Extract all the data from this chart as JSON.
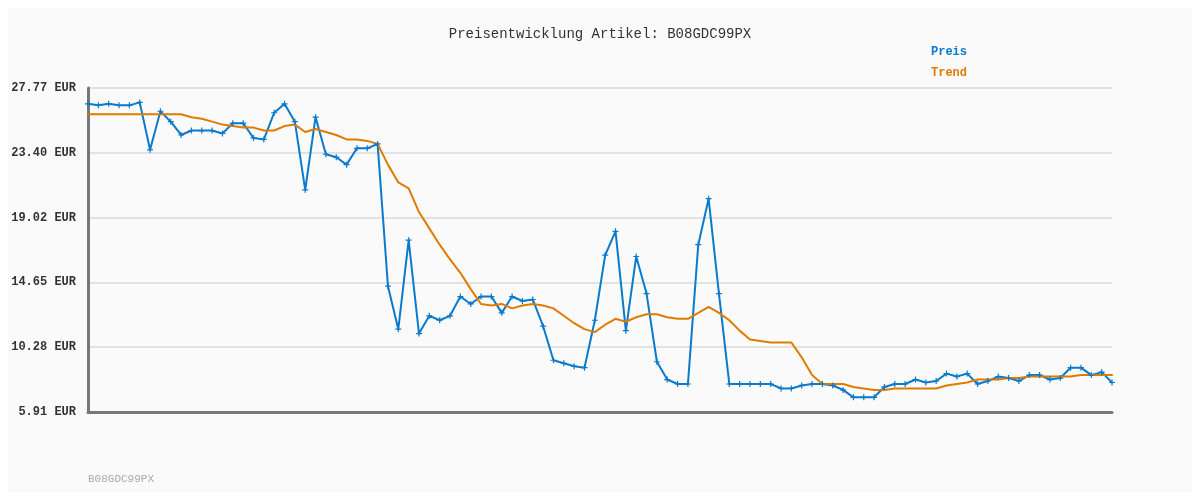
{
  "chart_data": {
    "type": "line",
    "title": "Preisentwicklung Artikel: B08GDC99PX",
    "categories": [
      null,
      null,
      null,
      null,
      null,
      null,
      null,
      null,
      null,
      null,
      null,
      null,
      null,
      null,
      null,
      null,
      null,
      null,
      null,
      null,
      null,
      null,
      null,
      null,
      null,
      null,
      null,
      null,
      null,
      null,
      null,
      null,
      null,
      null,
      null,
      null,
      null,
      null,
      null,
      null,
      null,
      null,
      null,
      null,
      null,
      null,
      null,
      null,
      null,
      null,
      null,
      null,
      null,
      null,
      null,
      null,
      null,
      null,
      null,
      null,
      null,
      null,
      null,
      null,
      null,
      null,
      null,
      null,
      null,
      null,
      null,
      null,
      null,
      null,
      null,
      null,
      null,
      null,
      null,
      null,
      null,
      null,
      null,
      null,
      null,
      null,
      null,
      null,
      null,
      null,
      null,
      null,
      null,
      null,
      null,
      null,
      null,
      null,
      null,
      null
    ],
    "series": [
      {
        "name": "Preis",
        "color": "#0a7acc",
        "marker": "cross",
        "values": [
          26.7,
          26.6,
          26.7,
          26.6,
          26.6,
          26.8,
          23.6,
          26.2,
          25.5,
          24.6,
          24.9,
          24.9,
          24.9,
          24.7,
          25.4,
          25.4,
          24.4,
          24.3,
          26.1,
          26.7,
          25.5,
          20.9,
          25.8,
          23.3,
          23.1,
          22.6,
          23.7,
          23.7,
          24.0,
          14.4,
          11.5,
          17.5,
          11.2,
          12.4,
          12.1,
          12.4,
          13.7,
          13.2,
          13.7,
          13.7,
          12.6,
          13.7,
          13.4,
          13.5,
          11.7,
          9.4,
          9.2,
          9.0,
          8.9,
          12.1,
          16.5,
          18.1,
          11.4,
          16.4,
          13.9,
          9.3,
          8.1,
          7.8,
          7.8,
          17.2,
          20.3,
          13.9,
          7.8,
          7.8,
          7.8,
          7.8,
          7.8,
          7.5,
          7.5,
          7.7,
          7.8,
          7.8,
          7.7,
          7.4,
          6.9,
          6.9,
          6.9,
          7.6,
          7.8,
          7.8,
          8.1,
          7.9,
          8.0,
          8.5,
          8.3,
          8.5,
          7.8,
          8.0,
          8.3,
          8.2,
          8.0,
          8.4,
          8.4,
          8.1,
          8.2,
          8.9,
          8.9,
          8.4,
          8.6,
          7.9
        ]
      },
      {
        "name": "Trend",
        "color": "#e07b00",
        "marker": "none",
        "values": [
          26.0,
          26.0,
          26.0,
          26.0,
          26.0,
          26.0,
          26.0,
          26.0,
          26.0,
          26.0,
          25.8,
          25.7,
          25.5,
          25.3,
          25.2,
          25.1,
          25.1,
          24.9,
          24.9,
          25.2,
          25.3,
          24.8,
          25.0,
          24.8,
          24.6,
          24.3,
          24.3,
          24.2,
          24.0,
          22.6,
          21.4,
          21.0,
          19.4,
          18.3,
          17.2,
          16.2,
          15.3,
          14.2,
          13.2,
          13.1,
          13.2,
          12.9,
          13.1,
          13.2,
          13.1,
          12.9,
          12.4,
          11.9,
          11.5,
          11.3,
          11.8,
          12.2,
          12.0,
          12.3,
          12.5,
          12.5,
          12.3,
          12.2,
          12.2,
          12.6,
          13.0,
          12.6,
          12.1,
          11.4,
          10.8,
          10.7,
          10.6,
          10.6,
          10.6,
          9.6,
          8.4,
          7.8,
          7.8,
          7.8,
          7.6,
          7.5,
          7.4,
          7.4,
          7.5,
          7.5,
          7.5,
          7.5,
          7.5,
          7.7,
          7.8,
          7.9,
          8.1,
          8.1,
          8.1,
          8.2,
          8.2,
          8.3,
          8.3,
          8.3,
          8.3,
          8.3,
          8.4,
          8.4,
          8.4,
          8.4
        ]
      }
    ],
    "ylim": [
      5.91,
      27.77
    ],
    "yticks": [
      {
        "value": 5.91,
        "label": "5.91 EUR"
      },
      {
        "value": 10.28,
        "label": "10.28 EUR"
      },
      {
        "value": 14.65,
        "label": "14.65 EUR"
      },
      {
        "value": 19.02,
        "label": "19.02 EUR"
      },
      {
        "value": 23.4,
        "label": "23.40 EUR"
      },
      {
        "value": 27.77,
        "label": "27.77 EUR"
      }
    ],
    "grid": "y",
    "legend": "top right",
    "line_style": "solid",
    "annotations": [
      "B08GDC99PX"
    ]
  }
}
